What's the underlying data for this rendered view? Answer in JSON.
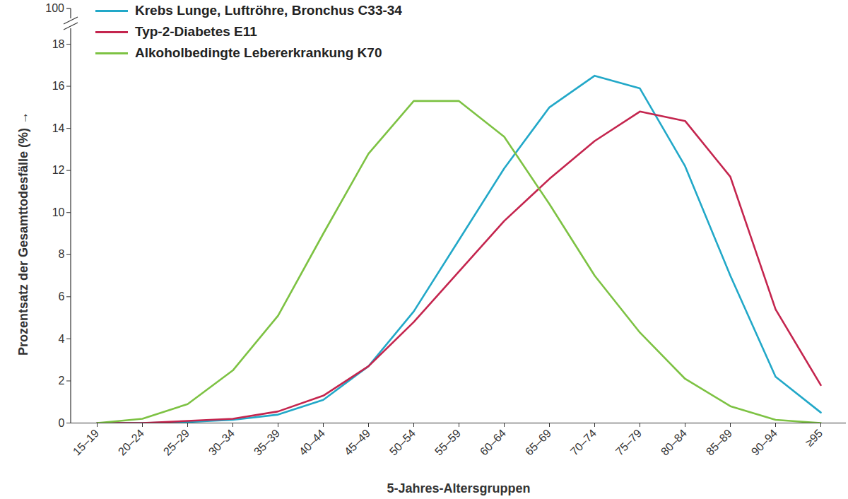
{
  "chart_data": {
    "type": "line",
    "x_label": "5-Jahres-Altersgruppen",
    "y_label": "Prozentsatz der Gesamttodesfälle (%)",
    "categories": [
      "15–19",
      "20–24",
      "25–29",
      "30–34",
      "35–39",
      "40–44",
      "45–49",
      "50–54",
      "55–59",
      "60–64",
      "65–69",
      "70–74",
      "75–79",
      "80–84",
      "85–89",
      "90–94",
      "≥95"
    ],
    "series": [
      {
        "name": "Krebs Lunge, Luftröhre, Bronchus C33-34",
        "color": "#22a8c8",
        "values": [
          0,
          0,
          0.05,
          0.15,
          0.4,
          1.1,
          2.7,
          5.3,
          8.7,
          12.1,
          15.0,
          16.5,
          15.9,
          12.2,
          7.0,
          2.2,
          0.5
        ]
      },
      {
        "name": "Typ-2-Diabetes E11",
        "color": "#c4254e",
        "values": [
          0,
          0,
          0.1,
          0.2,
          0.55,
          1.3,
          2.7,
          4.8,
          7.2,
          9.6,
          11.6,
          13.4,
          14.8,
          14.35,
          11.7,
          5.4,
          1.8
        ]
      },
      {
        "name": "Alkoholbedingte Lebererkrankung K70",
        "color": "#7dc243",
        "values": [
          0,
          0.2,
          0.9,
          2.5,
          5.1,
          9.0,
          12.8,
          15.3,
          15.3,
          13.6,
          10.4,
          7.0,
          4.3,
          2.1,
          0.8,
          0.15,
          0
        ]
      }
    ],
    "ylim": [
      0,
      18
    ],
    "yticks": [
      0,
      2,
      4,
      6,
      8,
      10,
      12,
      14,
      16,
      18
    ],
    "y_axis_break_top": 100,
    "legend": "top-left",
    "grid": false
  }
}
